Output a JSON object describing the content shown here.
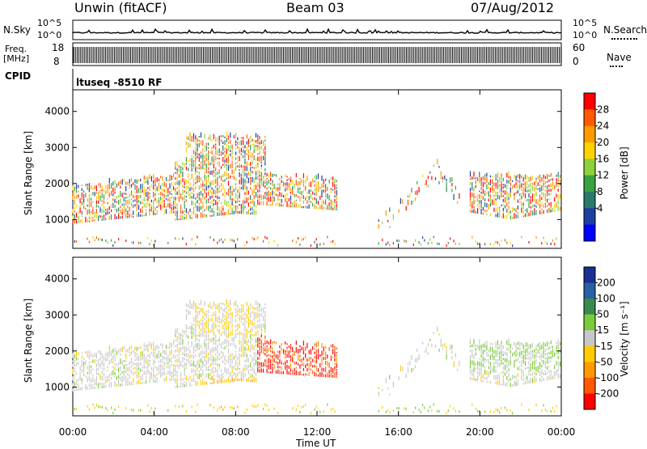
{
  "header": {
    "station": "Unwin (fitACF)",
    "beam": "Beam 03",
    "date": "07/Aug/2012"
  },
  "top_panels": {
    "nsky_label": "N.Sky",
    "nsky_ticks": [
      "10^5",
      "10^0"
    ],
    "nsearch_label": "N.Search",
    "nsearch_ticks": [
      "10^5",
      "10^0"
    ],
    "freq_label_1": "Freq.",
    "freq_label_2": "[MHz]",
    "freq_ticks": [
      "18",
      "8"
    ],
    "nave_label": "Nave",
    "nave_ticks": [
      "60",
      "0"
    ],
    "cpid_label": "CPID",
    "cpid_text": "ltuseq -8510 RF"
  },
  "chart_data": [
    {
      "type": "heatmap",
      "panel": "power",
      "ylabel": "Slant Range [km]",
      "yticks": [
        1000,
        2000,
        3000,
        4000
      ],
      "ylim": [
        200,
        4600
      ],
      "colorbar_label": "Power [dB]",
      "colorbar_ticks": [
        "28",
        "24",
        "20",
        "16",
        "12",
        "8",
        "4"
      ],
      "colorbar_colors": [
        "#ff0000",
        "#ff5a00",
        "#ff9a00",
        "#ffd200",
        "#8fd13a",
        "#3aa040",
        "#2a7a6a",
        "#1d3fa0",
        "#0000ff"
      ]
    },
    {
      "type": "heatmap",
      "panel": "velocity",
      "ylabel": "Slant Range [km]",
      "yticks": [
        1000,
        2000,
        3000,
        4000
      ],
      "ylim": [
        200,
        4600
      ],
      "colorbar_label": "Velocity [m s⁻¹]",
      "colorbar_ticks": [
        "200",
        "100",
        "50",
        "15",
        "-15",
        "-50",
        "-100",
        "-200"
      ],
      "colorbar_colors": [
        "#1a2f8f",
        "#2a5fa0",
        "#3a8a50",
        "#7acc3a",
        "#c8c8c8",
        "#ffcc00",
        "#ff9a00",
        "#ff5a00",
        "#ff0000"
      ]
    }
  ],
  "xaxis": {
    "label": "Time UT",
    "ticks": [
      "00:00",
      "04:00",
      "08:00",
      "12:00",
      "16:00",
      "20:00",
      "00:00"
    ]
  }
}
